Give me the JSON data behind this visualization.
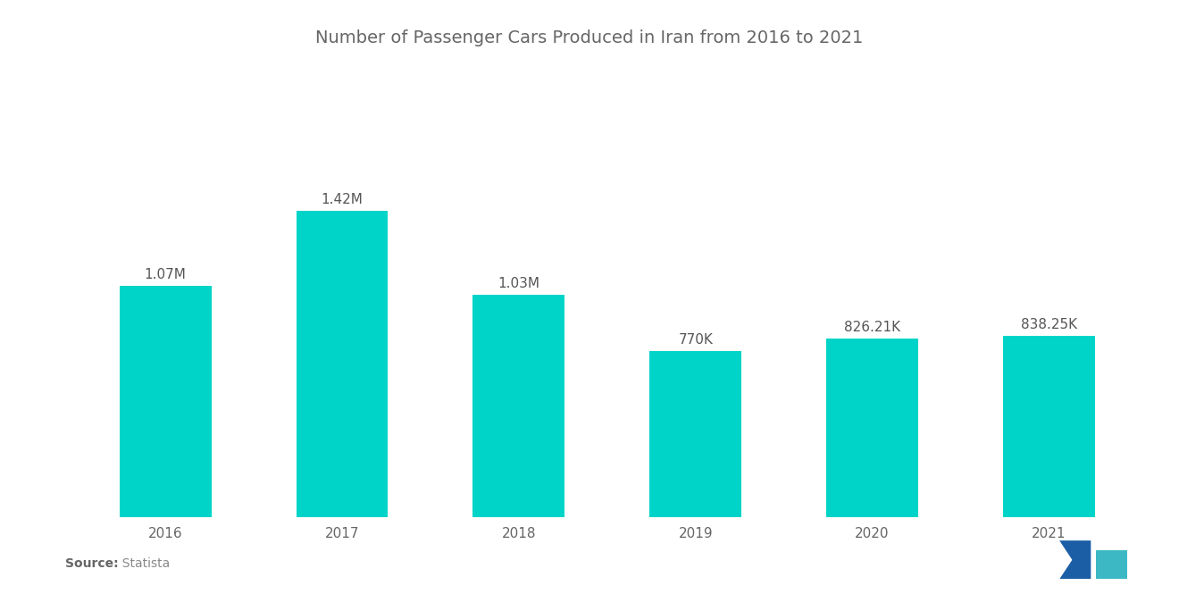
{
  "title": "Number of Passenger Cars Produced in Iran from 2016 to 2021",
  "categories": [
    "2016",
    "2017",
    "2018",
    "2019",
    "2020",
    "2021"
  ],
  "values": [
    1070000,
    1420000,
    1030000,
    770000,
    826210,
    838250
  ],
  "labels": [
    "1.07M",
    "1.42M",
    "1.03M",
    "770K",
    "826.21K",
    "838.25K"
  ],
  "bar_color": "#00D4C8",
  "background_color": "#FFFFFF",
  "title_fontsize": 14,
  "label_fontsize": 11,
  "tick_fontsize": 11,
  "source_bold": "Source:",
  "source_normal": "  Statista",
  "ylim": [
    0,
    1900000
  ],
  "logo_left_color": "#1B5EA6",
  "logo_right_color": "#3BB8C3"
}
